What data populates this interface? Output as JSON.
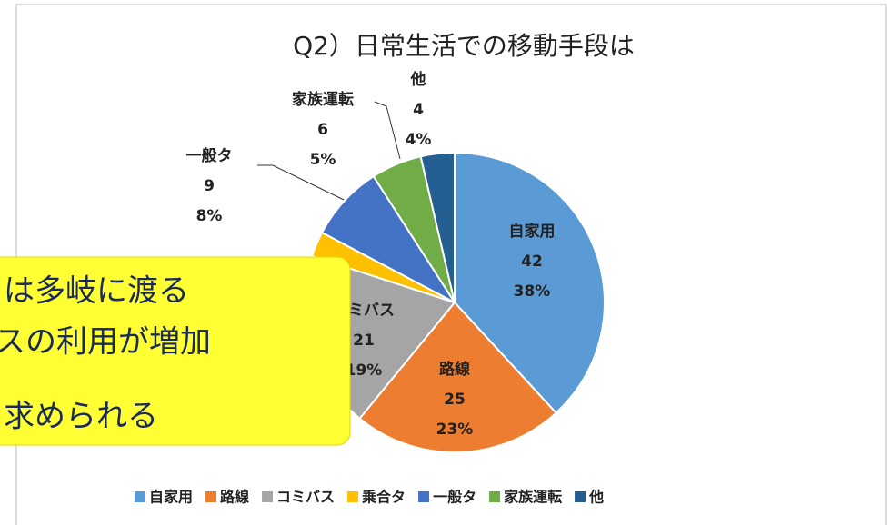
{
  "chart_data": {
    "type": "pie",
    "title": "Q2）日常生活での移動手段は",
    "categories": [
      "自家用",
      "路線",
      "コミバス",
      "乗合タ",
      "一般タ",
      "家族運転",
      "他"
    ],
    "values": [
      42,
      25,
      21,
      3,
      9,
      6,
      4
    ],
    "percent_labels": [
      "38%",
      "23%",
      "19%",
      null,
      "8%",
      "5%",
      "4%"
    ],
    "colors": [
      "#5b9bd5",
      "#ed7d31",
      "#a5a5a5",
      "#ffc000",
      "#4472c4",
      "#70ad47",
      "#255e91"
    ],
    "legend": "bottom"
  },
  "callout": {
    "lines": [
      "は多岐に渡る",
      "スの利用が増加",
      "求められる"
    ]
  }
}
